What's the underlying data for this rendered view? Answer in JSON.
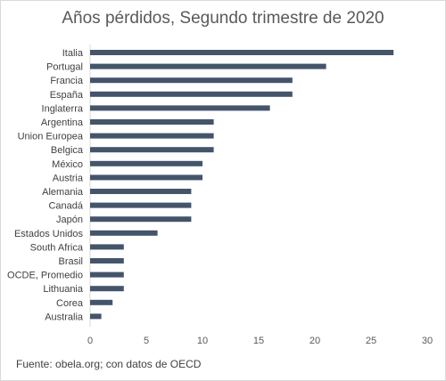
{
  "chart_data": {
    "type": "bar",
    "orientation": "horizontal",
    "title": "Años pérdidos, Segundo trimestre de 2020",
    "source": "Fuente:  obela.org; con datos de OECD",
    "categories": [
      "Italia",
      "Portugal",
      "Francia",
      "España",
      "Inglaterra",
      "Argentina",
      "Union Europea",
      "Belgica",
      "México",
      "Austria",
      "Alemania",
      "Canadá",
      "Japón",
      "Estados Unidos",
      "South Africa",
      "Brasil",
      "OCDE, Promedio",
      "Lithuania",
      "Corea",
      "Australia"
    ],
    "values": [
      27,
      21,
      18,
      18,
      16,
      11,
      11,
      11,
      10,
      10,
      9,
      9,
      9,
      6,
      3,
      3,
      3,
      3,
      2,
      1
    ],
    "xlim": [
      0,
      30
    ],
    "xticks": [
      0,
      5,
      10,
      15,
      20,
      25,
      30
    ],
    "grid": false,
    "bar_color": "#44546a"
  }
}
